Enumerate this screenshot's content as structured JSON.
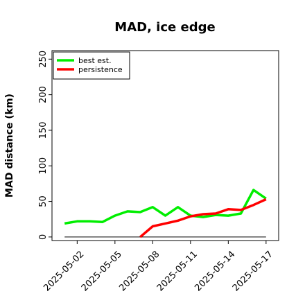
{
  "chart_data": {
    "type": "line",
    "title": "MAD, ice edge",
    "ylabel": "MAD distance (km)",
    "xlabel": "",
    "x_start": "2025-05-01",
    "x_end": "2025-05-17",
    "xlim": [
      "2025-04-30",
      "2025-05-18"
    ],
    "ylim": [
      -5,
      262
    ],
    "y_ticks": [
      0,
      50,
      100,
      150,
      200,
      250
    ],
    "x_ticks": [
      "2025-05-02",
      "2025-05-05",
      "2025-05-08",
      "2025-05-11",
      "2025-05-14",
      "2025-05-17"
    ],
    "legend": {
      "placement": "top-left"
    },
    "grid": false,
    "series": [
      {
        "name": "best est.",
        "color": "#00ee00",
        "x": [
          "2025-05-01",
          "2025-05-02",
          "2025-05-03",
          "2025-05-04",
          "2025-05-05",
          "2025-05-06",
          "2025-05-07",
          "2025-05-08",
          "2025-05-09",
          "2025-05-10",
          "2025-05-11",
          "2025-05-12",
          "2025-05-13",
          "2025-05-14",
          "2025-05-15",
          "2025-05-16",
          "2025-05-17"
        ],
        "values": [
          19,
          22,
          22,
          21,
          30,
          36,
          35,
          42,
          30,
          42,
          30,
          28,
          31,
          30,
          33,
          66,
          54
        ]
      },
      {
        "name": "persistence",
        "color": "#ff0000",
        "x": [
          "2025-05-07",
          "2025-05-08",
          "2025-05-09",
          "2025-05-10",
          "2025-05-11",
          "2025-05-12",
          "2025-05-13",
          "2025-05-14",
          "2025-05-15",
          "2025-05-16",
          "2025-05-17"
        ],
        "values": [
          0,
          15,
          19,
          23,
          29,
          32,
          33,
          39,
          38,
          45,
          53
        ]
      },
      {
        "color": "#000000",
        "x": [
          "2025-05-01",
          "2025-05-17"
        ],
        "values": [
          0,
          0
        ]
      }
    ]
  }
}
